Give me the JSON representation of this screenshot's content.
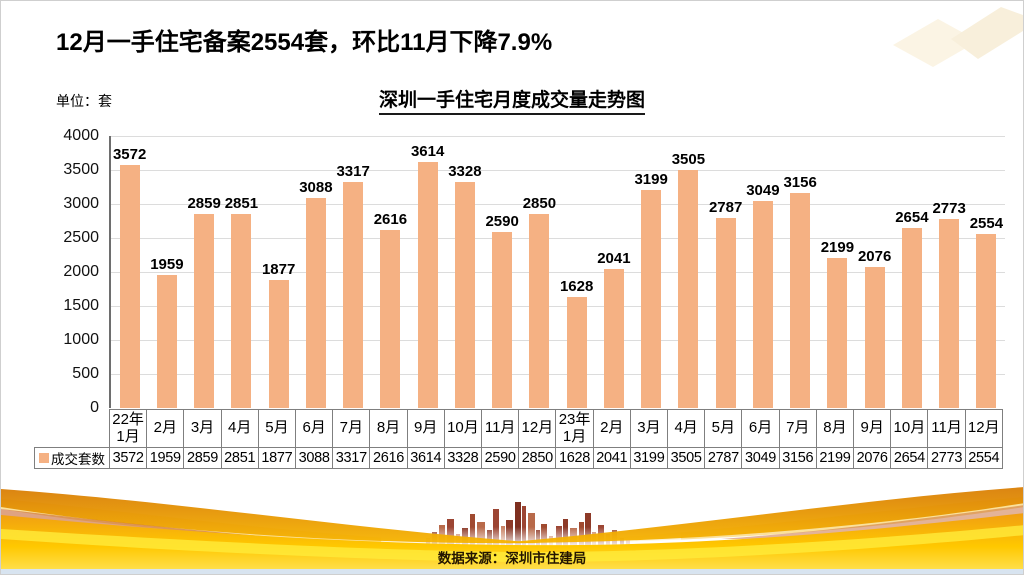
{
  "page": {
    "title": "12月一手住宅备案2554套，环比11月下降7.9%",
    "unit_label": "单位：套",
    "source_label": "数据来源：深圳市住建局"
  },
  "chart_data": {
    "type": "bar",
    "title": "深圳一手住宅月度成交量走势图",
    "series_name": "成交套数",
    "categories": [
      "22年1月",
      "2月",
      "3月",
      "4月",
      "5月",
      "6月",
      "7月",
      "8月",
      "9月",
      "10月",
      "11月",
      "12月",
      "23年1月",
      "2月",
      "3月",
      "4月",
      "5月",
      "6月",
      "7月",
      "8月",
      "9月",
      "10月",
      "11月",
      "12月"
    ],
    "values": [
      3572,
      1959,
      2859,
      2851,
      1877,
      3088,
      3317,
      2616,
      3614,
      3328,
      2590,
      2850,
      1628,
      2041,
      3199,
      3505,
      2787,
      3049,
      3156,
      2199,
      2076,
      2654,
      2773,
      2554
    ],
    "ylabel": "套",
    "ylim": [
      0,
      4000
    ],
    "ytick_step": 500,
    "grid": true,
    "data_labels": true,
    "legend_position": "bottom-table",
    "bar_color": "#F5B183"
  },
  "colors": {
    "bar": "#F5B183",
    "gridline": "#DCDCDC",
    "axis_line": "#6E6E6E",
    "table_border": "#7F7F7F",
    "footer_gold": "#FFC000"
  }
}
